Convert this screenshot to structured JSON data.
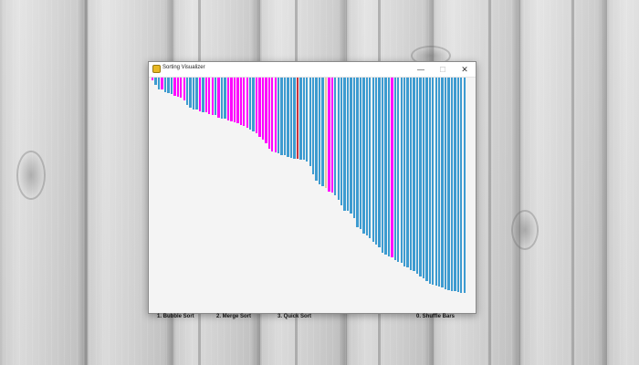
{
  "window": {
    "title": "Sorting Visualizer",
    "controls": {
      "minimize": "—",
      "maximize": "☐",
      "close": "✕"
    }
  },
  "visualizer": {
    "bar_count": 100,
    "colors": {
      "default": "#3d9bd0",
      "compare": "#ff00ff",
      "pivot": "#c8323c",
      "marker": "#e6c9a0"
    },
    "bar_heights": [
      3,
      8,
      13,
      13,
      16,
      17,
      18,
      20,
      21,
      22,
      25,
      30,
      33,
      35,
      35,
      37,
      38,
      38,
      40,
      41,
      41,
      44,
      45,
      45,
      47,
      48,
      49,
      50,
      52,
      53,
      55,
      57,
      59,
      61,
      65,
      68,
      72,
      78,
      81,
      82,
      83,
      85,
      85,
      87,
      88,
      89,
      89,
      90,
      90,
      92,
      97,
      106,
      113,
      117,
      119,
      121,
      125,
      126,
      129,
      134,
      140,
      146,
      146,
      149,
      154,
      164,
      166,
      171,
      173,
      176,
      180,
      183,
      186,
      192,
      194,
      196,
      197,
      200,
      202,
      203,
      207,
      208,
      211,
      212,
      215,
      218,
      220,
      223,
      226,
      227,
      228,
      229,
      230,
      232,
      233,
      234,
      234,
      235,
      236,
      236
    ],
    "bar_colors": [
      "compare",
      "default",
      "default",
      "compare",
      "default",
      "default",
      "default",
      "compare",
      "compare",
      "compare",
      "compare",
      "default",
      "default",
      "default",
      "default",
      "compare",
      "default",
      "compare",
      "compare",
      "compare",
      "default",
      "compare",
      "default",
      "default",
      "compare",
      "compare",
      "compare",
      "compare",
      "compare",
      "compare",
      "compare",
      "default",
      "default",
      "compare",
      "compare",
      "compare",
      "compare",
      "compare",
      "compare",
      "compare",
      "default",
      "default",
      "default",
      "default",
      "default",
      "default",
      "pivot",
      "default",
      "default",
      "default",
      "default",
      "default",
      "default",
      "default",
      "default",
      "marker",
      "compare",
      "compare",
      "default",
      "default",
      "default",
      "default",
      "default",
      "default",
      "default",
      "default",
      "default",
      "default",
      "default",
      "default",
      "default",
      "default",
      "default",
      "default",
      "default",
      "default",
      "compare",
      "default",
      "default",
      "default",
      "default",
      "default",
      "default",
      "default",
      "default",
      "default",
      "default",
      "default",
      "default",
      "default",
      "default",
      "default",
      "default",
      "default",
      "default",
      "default",
      "default",
      "default",
      "default",
      "default"
    ]
  },
  "menu": {
    "bubble": "1. Bubble Sort",
    "merge": "2. Merge Sort",
    "quick": "3. Quick Sort",
    "shuffle": "0. Shuffle Bars"
  }
}
